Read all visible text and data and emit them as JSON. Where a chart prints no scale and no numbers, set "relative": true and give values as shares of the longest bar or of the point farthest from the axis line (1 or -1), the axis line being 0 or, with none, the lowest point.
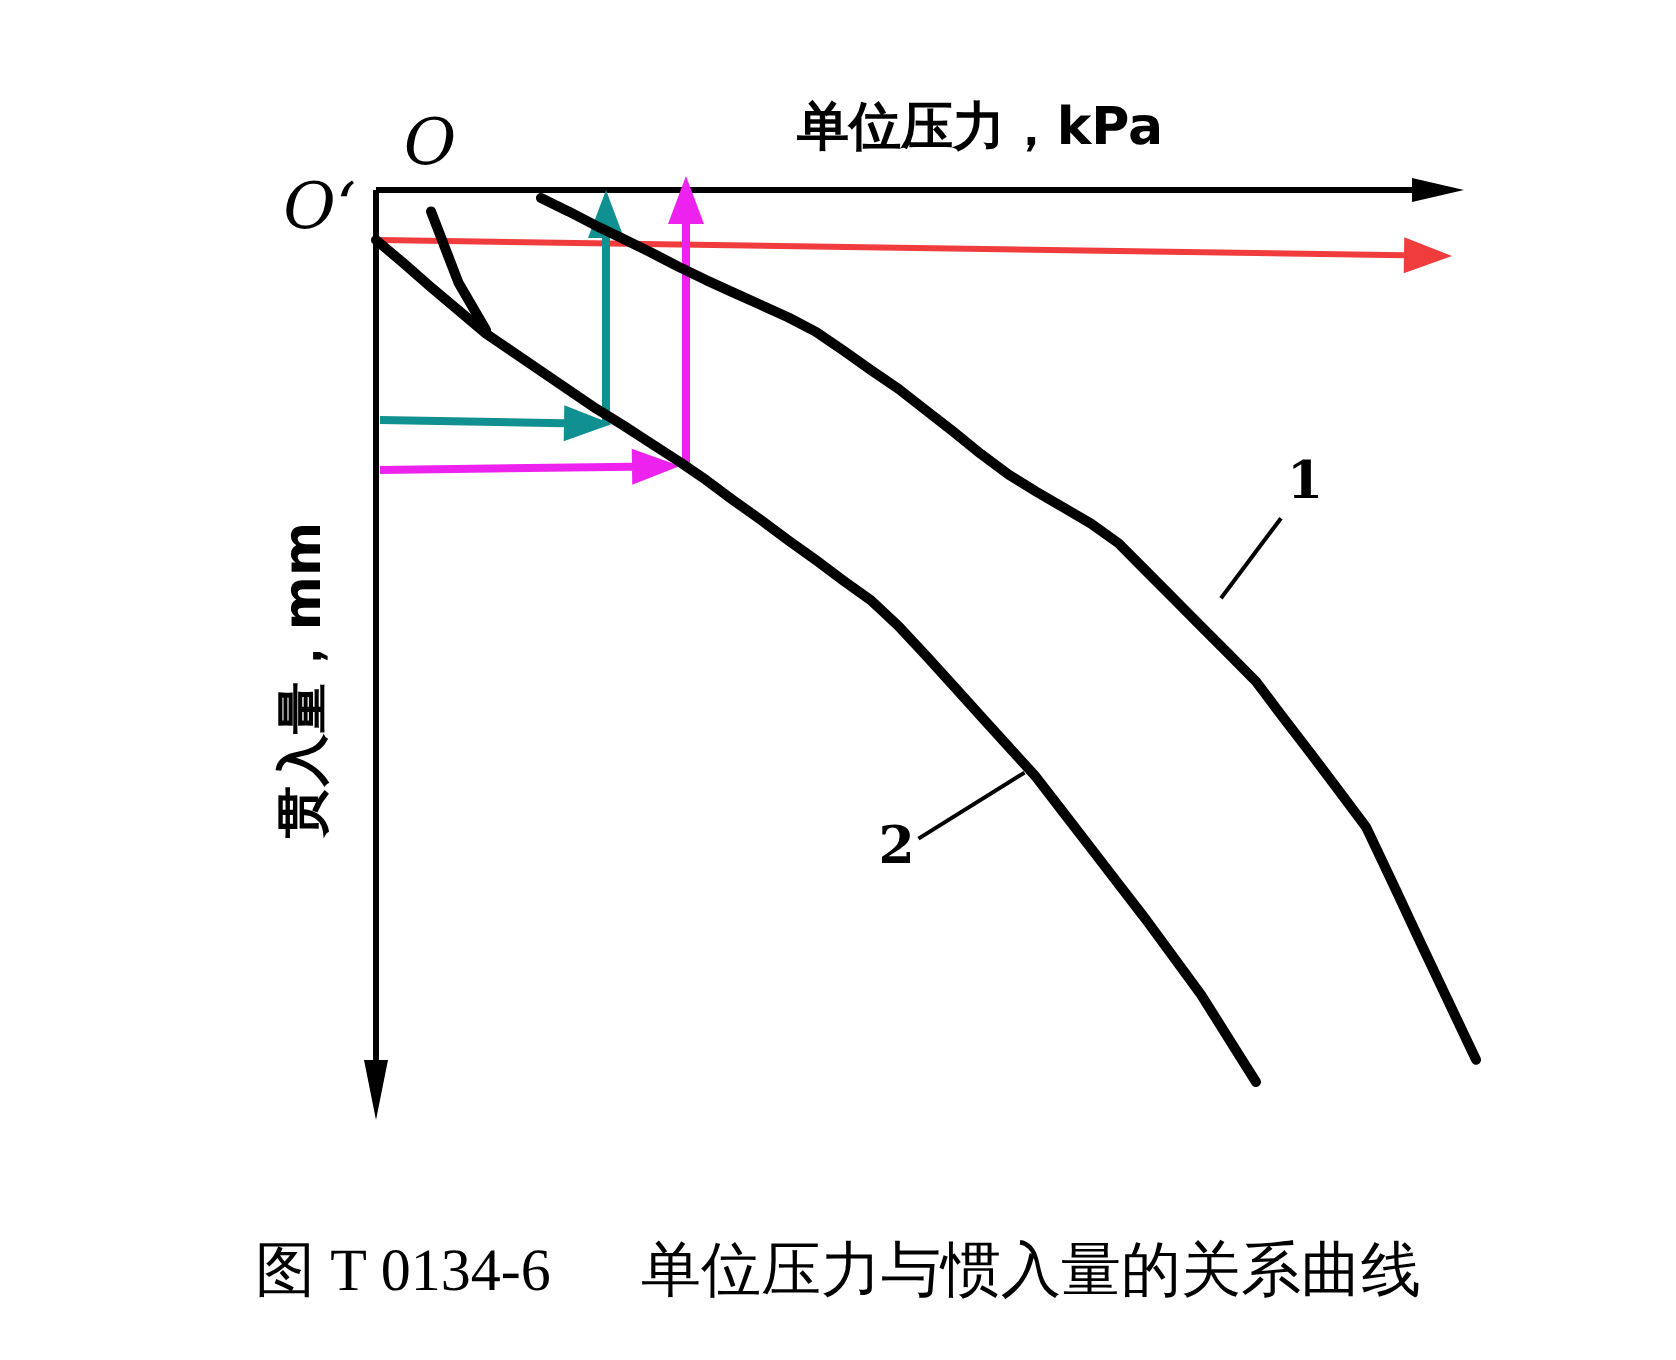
{
  "chart_data": {
    "type": "line",
    "relative": true,
    "xlabel": "单位压力，kPa",
    "ylabel": "贯入量，mm",
    "categories": [
      null,
      null,
      null,
      null,
      null,
      null,
      null,
      null,
      null,
      null,
      null,
      null,
      null,
      null,
      null,
      null,
      null,
      null,
      null,
      null,
      null,
      null,
      null,
      null,
      null,
      null,
      null,
      null,
      null,
      null,
      null,
      null,
      null,
      null,
      null,
      null,
      null,
      null,
      null,
      null,
      null
    ],
    "series": [
      {
        "name": "1",
        "color": "#000000",
        "values": [
          null,
          null,
          null,
          null,
          null,
          null,
          -0.009,
          -0.024,
          -0.04,
          -0.055,
          -0.07,
          -0.086,
          -0.101,
          -0.115,
          -0.129,
          -0.143,
          -0.159,
          -0.18,
          -0.202,
          -0.223,
          -0.247,
          -0.271,
          -0.296,
          -0.319,
          -0.338,
          -0.356,
          -0.374,
          -0.396,
          -0.427,
          -0.458,
          -0.489,
          -0.52,
          -0.551,
          -0.592,
          -0.632,
          -0.673,
          -0.714,
          -0.779,
          -0.845,
          -0.91,
          -0.975
        ]
      },
      {
        "name": "2",
        "color": "#000000",
        "values": [
          -0.056,
          -0.082,
          -0.109,
          -0.135,
          -0.161,
          -0.182,
          -0.203,
          -0.224,
          -0.245,
          -0.264,
          -0.284,
          -0.304,
          -0.325,
          -0.348,
          -0.37,
          -0.393,
          -0.415,
          -0.438,
          -0.46,
          -0.489,
          -0.522,
          -0.556,
          -0.59,
          -0.624,
          -0.658,
          -0.698,
          -0.738,
          -0.778,
          -0.818,
          -0.86,
          -0.902,
          -0.951,
          -1.0,
          null,
          null,
          null,
          null,
          null,
          null,
          null,
          null
        ]
      },
      {
        "color": "#000000",
        "values": [
          null,
          null,
          -0.024,
          -0.104,
          -0.157,
          null,
          null,
          null,
          null,
          null,
          null,
          null,
          null,
          null,
          null,
          null,
          null,
          null,
          null,
          null,
          null,
          null,
          null,
          null,
          null,
          null,
          null,
          null,
          null,
          null,
          null,
          null,
          null,
          null,
          null,
          null,
          null,
          null,
          null,
          null,
          null
        ]
      }
    ],
    "annotations": [
      "O",
      "O‘",
      "图 T 0134-6      单位压力与惯入量的关系曲线"
    ]
  }
}
